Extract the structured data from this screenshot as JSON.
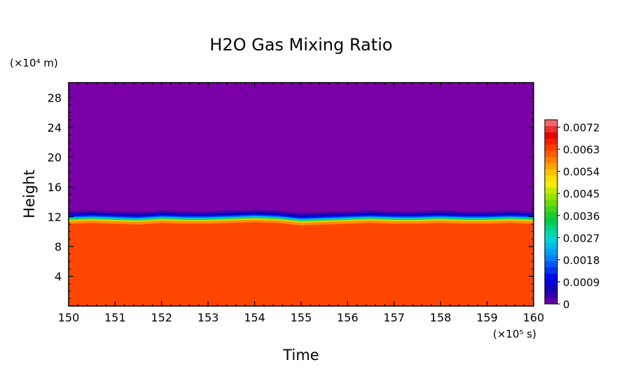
{
  "chart_data": {
    "type": "heatmap",
    "title": "H2O Gas Mixing Ratio",
    "xlabel": "Time",
    "ylabel": "Height",
    "x_unit": "(×10⁵ s)",
    "y_unit": "(×10⁴ m)",
    "xlim": [
      150,
      160
    ],
    "ylim": [
      0,
      30
    ],
    "xticks": [
      "150",
      "151",
      "152",
      "153",
      "154",
      "155",
      "156",
      "157",
      "158",
      "159",
      "160"
    ],
    "yticks": [
      "4",
      "8",
      "12",
      "16",
      "20",
      "24",
      "28"
    ],
    "xtick_values": [
      150,
      151,
      152,
      153,
      154,
      155,
      156,
      157,
      158,
      159,
      160
    ],
    "ytick_values": [
      4,
      8,
      12,
      16,
      20,
      24,
      28
    ],
    "colorbar": {
      "min": 0,
      "max": 0.0075,
      "step": 0.00025,
      "tick_values": [
        0,
        0.0009,
        0.0018,
        0.0027,
        0.0036,
        0.0045,
        0.0054,
        0.0063,
        0.0072
      ],
      "tick_labels": [
        "0",
        "0.0009",
        "0.0018",
        "0.0027",
        "0.0036",
        "0.0045",
        "0.0054",
        "0.0063",
        "0.0072"
      ]
    },
    "field_summary": {
      "upper_layer": {
        "height_range": [
          12.5,
          30
        ],
        "value": 0
      },
      "transition": {
        "height_range": [
          11,
          12.5
        ],
        "value_range": [
          0,
          0.0056
        ]
      },
      "lower_layer": {
        "height_range": [
          0,
          11
        ],
        "value": 0.0063
      }
    },
    "interface_height": {
      "x": [
        150,
        150.5,
        151,
        151.5,
        152,
        152.5,
        153,
        153.5,
        154,
        154.5,
        155,
        155.5,
        156,
        156.5,
        157,
        157.5,
        158,
        158.5,
        159,
        159.5,
        160
      ],
      "y": [
        11.5,
        11.6,
        11.5,
        11.4,
        11.6,
        11.5,
        11.5,
        11.6,
        11.7,
        11.6,
        11.3,
        11.4,
        11.5,
        11.6,
        11.5,
        11.5,
        11.6,
        11.5,
        11.5,
        11.6,
        11.5
      ]
    },
    "colors": {
      "low": "#7b00a8",
      "high": "#ff4a00",
      "frame": "#000000"
    }
  }
}
